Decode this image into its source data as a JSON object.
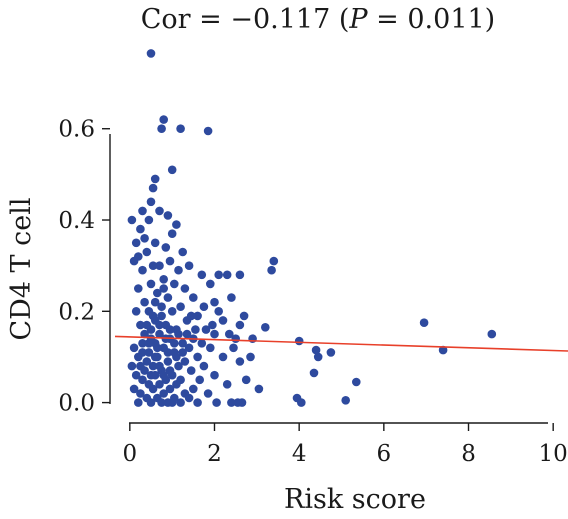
{
  "chart_data": {
    "type": "scatter",
    "title_prefix": "Cor = −0.117 (",
    "title_p": "P",
    "title_suffix": " = 0.011)",
    "xlabel": "Risk score",
    "ylabel": "CD4 T cell",
    "xlim": [
      -0.35,
      10.35
    ],
    "ylim": [
      -0.025,
      0.79
    ],
    "x_ticks": [
      0,
      2,
      4,
      6,
      8,
      10
    ],
    "y_ticks": [
      0.0,
      0.2,
      0.4,
      0.6
    ],
    "x_tick_labels": [
      "0",
      "2",
      "4",
      "6",
      "8",
      "10"
    ],
    "y_tick_labels": [
      "0.0",
      "0.2",
      "0.4",
      "0.6"
    ],
    "grid": false,
    "point_color": "#2e4a9e",
    "line_color": "#e8402a",
    "trend_line": {
      "x": [
        -0.35,
        10.35
      ],
      "y": [
        0.145,
        0.113
      ]
    },
    "points": [
      [
        0.5,
        0.765
      ],
      [
        0.8,
        0.62
      ],
      [
        0.75,
        0.6
      ],
      [
        1.2,
        0.6
      ],
      [
        1.85,
        0.595
      ],
      [
        1.0,
        0.51
      ],
      [
        0.6,
        0.49
      ],
      [
        0.55,
        0.47
      ],
      [
        0.5,
        0.44
      ],
      [
        0.7,
        0.42
      ],
      [
        0.3,
        0.42
      ],
      [
        0.05,
        0.4
      ],
      [
        0.25,
        0.38
      ],
      [
        0.45,
        0.4
      ],
      [
        0.9,
        0.41
      ],
      [
        1.1,
        0.39
      ],
      [
        0.35,
        0.36
      ],
      [
        0.15,
        0.35
      ],
      [
        0.6,
        0.35
      ],
      [
        1.0,
        0.37
      ],
      [
        0.85,
        0.34
      ],
      [
        1.25,
        0.33
      ],
      [
        0.4,
        0.33
      ],
      [
        0.2,
        0.32
      ],
      [
        0.7,
        0.3
      ],
      [
        0.95,
        0.31
      ],
      [
        1.4,
        0.3
      ],
      [
        1.15,
        0.29
      ],
      [
        0.55,
        0.3
      ],
      [
        0.3,
        0.29
      ],
      [
        0.1,
        0.31
      ],
      [
        1.7,
        0.28
      ],
      [
        2.1,
        0.28
      ],
      [
        2.3,
        0.28
      ],
      [
        2.6,
        0.28
      ],
      [
        3.4,
        0.31
      ],
      [
        3.35,
        0.29
      ],
      [
        1.9,
        0.26
      ],
      [
        0.8,
        0.27
      ],
      [
        0.5,
        0.26
      ],
      [
        1.05,
        0.26
      ],
      [
        1.3,
        0.25
      ],
      [
        0.2,
        0.25
      ],
      [
        0.65,
        0.24
      ],
      [
        0.9,
        0.23
      ],
      [
        1.5,
        0.23
      ],
      [
        2.4,
        0.23
      ],
      [
        2.0,
        0.22
      ],
      [
        0.35,
        0.22
      ],
      [
        0.75,
        0.21
      ],
      [
        1.2,
        0.21
      ],
      [
        0.45,
        0.2
      ],
      [
        0.15,
        0.2
      ],
      [
        1.0,
        0.2
      ],
      [
        1.6,
        0.19
      ],
      [
        2.7,
        0.19
      ],
      [
        2.2,
        0.18
      ],
      [
        0.6,
        0.18
      ],
      [
        0.85,
        0.17
      ],
      [
        1.35,
        0.18
      ],
      [
        0.25,
        0.17
      ],
      [
        1.1,
        0.16
      ],
      [
        0.5,
        0.16
      ],
      [
        1.8,
        0.16
      ],
      [
        2.0,
        0.15
      ],
      [
        0.7,
        0.15
      ],
      [
        1.5,
        0.14
      ],
      [
        0.95,
        0.14
      ],
      [
        0.3,
        0.13
      ],
      [
        0.6,
        0.13
      ],
      [
        1.25,
        0.13
      ],
      [
        2.5,
        0.14
      ],
      [
        0.1,
        0.12
      ],
      [
        0.8,
        0.12
      ],
      [
        1.4,
        0.12
      ],
      [
        1.9,
        0.12
      ],
      [
        0.45,
        0.11
      ],
      [
        1.05,
        0.11
      ],
      [
        0.2,
        0.1
      ],
      [
        0.65,
        0.1
      ],
      [
        1.6,
        0.1
      ],
      [
        2.2,
        0.1
      ],
      [
        0.4,
        0.09
      ],
      [
        0.9,
        0.09
      ],
      [
        1.3,
        0.09
      ],
      [
        0.05,
        0.08
      ],
      [
        0.55,
        0.08
      ],
      [
        1.15,
        0.08
      ],
      [
        1.75,
        0.08
      ],
      [
        2.6,
        0.09
      ],
      [
        0.35,
        0.07
      ],
      [
        0.75,
        0.07
      ],
      [
        1.45,
        0.07
      ],
      [
        0.15,
        0.06
      ],
      [
        0.6,
        0.06
      ],
      [
        1.0,
        0.06
      ],
      [
        2.0,
        0.06
      ],
      [
        0.3,
        0.05
      ],
      [
        0.85,
        0.05
      ],
      [
        1.2,
        0.05
      ],
      [
        1.65,
        0.05
      ],
      [
        0.45,
        0.04
      ],
      [
        0.7,
        0.04
      ],
      [
        1.1,
        0.04
      ],
      [
        2.3,
        0.04
      ],
      [
        0.1,
        0.03
      ],
      [
        0.55,
        0.03
      ],
      [
        0.95,
        0.03
      ],
      [
        1.5,
        0.03
      ],
      [
        0.25,
        0.02
      ],
      [
        0.8,
        0.02
      ],
      [
        1.3,
        0.02
      ],
      [
        1.85,
        0.02
      ],
      [
        0.4,
        0.01
      ],
      [
        0.65,
        0.01
      ],
      [
        1.05,
        0.01
      ],
      [
        1.4,
        0.01
      ],
      [
        0.5,
        0.0
      ],
      [
        0.9,
        0.0
      ],
      [
        1.2,
        0.0
      ],
      [
        1.6,
        0.0
      ],
      [
        2.05,
        0.0
      ],
      [
        0.2,
        0.0
      ],
      [
        0.75,
        0.0
      ],
      [
        1.0,
        0.0
      ],
      [
        2.4,
        0.0
      ],
      [
        2.55,
        0.0
      ],
      [
        2.65,
        0.0
      ],
      [
        3.2,
        0.165
      ],
      [
        2.6,
        0.17
      ],
      [
        2.1,
        0.2
      ],
      [
        2.85,
        0.1
      ],
      [
        2.75,
        0.05
      ],
      [
        3.05,
        0.03
      ],
      [
        2.45,
        0.12
      ],
      [
        2.35,
        0.15
      ],
      [
        2.9,
        0.14
      ],
      [
        1.75,
        0.21
      ],
      [
        0.6,
        0.22
      ],
      [
        0.55,
        0.19
      ],
      [
        0.8,
        0.25
      ],
      [
        0.95,
        0.16
      ],
      [
        0.65,
        0.12
      ],
      [
        0.9,
        0.11
      ],
      [
        1.05,
        0.13
      ],
      [
        0.35,
        0.15
      ],
      [
        0.45,
        0.13
      ],
      [
        0.7,
        0.17
      ],
      [
        0.5,
        0.14
      ],
      [
        0.75,
        0.19
      ],
      [
        0.4,
        0.17
      ],
      [
        0.85,
        0.14
      ],
      [
        1.15,
        0.15
      ],
      [
        0.6,
        0.1
      ],
      [
        0.7,
        0.08
      ],
      [
        0.8,
        0.06
      ],
      [
        0.95,
        0.07
      ],
      [
        1.1,
        0.1
      ],
      [
        0.5,
        0.06
      ],
      [
        0.25,
        0.08
      ],
      [
        0.3,
        0.11
      ],
      [
        1.35,
        0.15
      ],
      [
        1.25,
        0.11
      ],
      [
        1.55,
        0.16
      ],
      [
        1.45,
        0.19
      ],
      [
        1.7,
        0.13
      ],
      [
        1.95,
        0.17
      ],
      [
        4.0,
        0.135
      ],
      [
        4.4,
        0.115
      ],
      [
        4.75,
        0.11
      ],
      [
        4.45,
        0.1
      ],
      [
        4.35,
        0.065
      ],
      [
        5.35,
        0.045
      ],
      [
        5.1,
        0.005
      ],
      [
        3.95,
        0.01
      ],
      [
        4.05,
        0.0
      ],
      [
        6.95,
        0.175
      ],
      [
        7.4,
        0.115
      ],
      [
        8.55,
        0.15
      ]
    ]
  }
}
